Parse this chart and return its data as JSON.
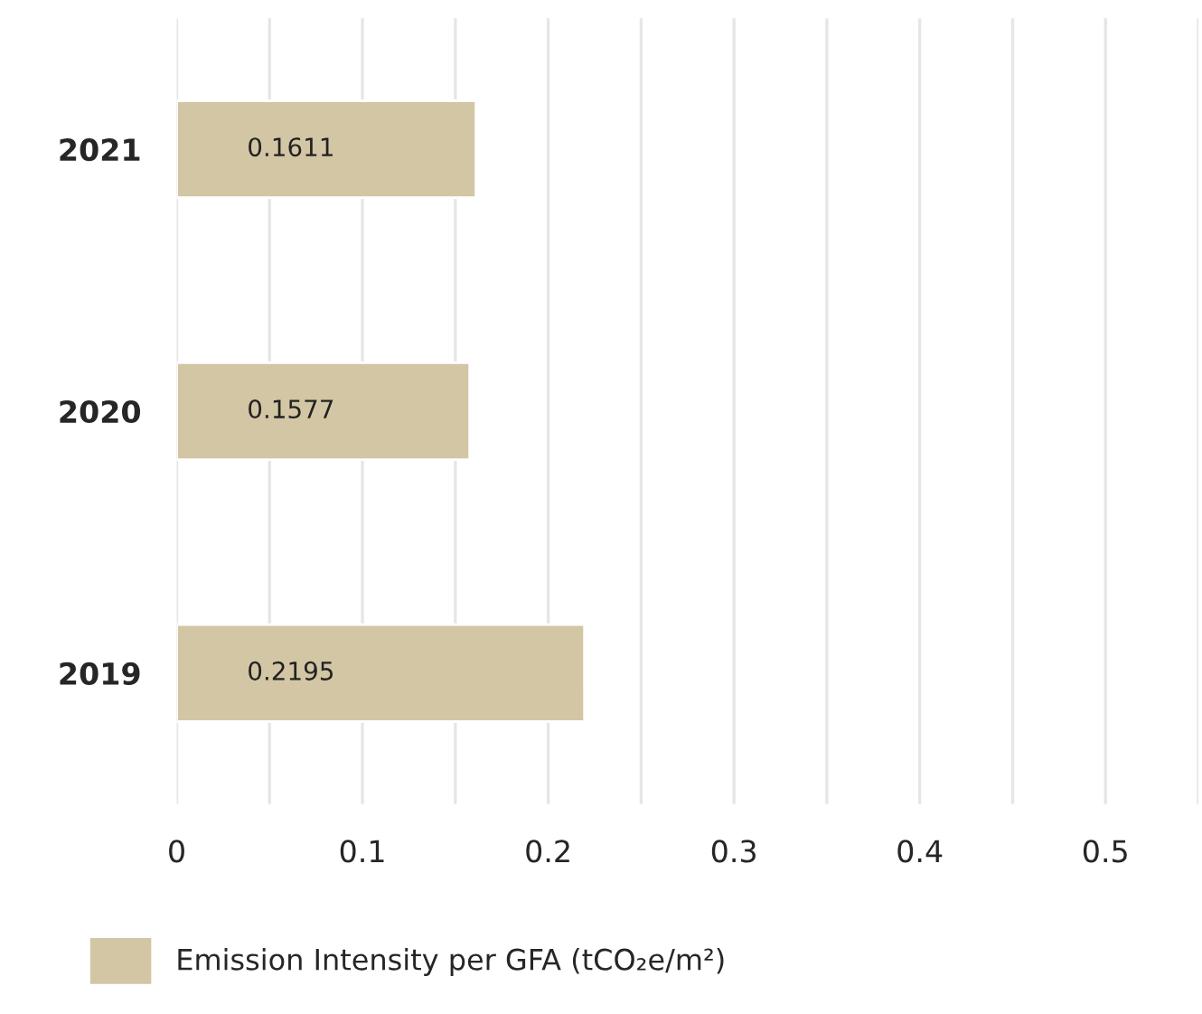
{
  "chart_data": {
    "type": "bar",
    "orientation": "horizontal",
    "categories": [
      "2021",
      "2020",
      "2019"
    ],
    "series": [
      {
        "name": "Emission Intensity per GFA (tCO₂e/m²)",
        "color": "#d3c6a4",
        "values": [
          0.1611,
          0.1577,
          0.2195
        ]
      }
    ],
    "data_labels": true,
    "xlim": [
      0,
      0.55
    ],
    "xticks": [
      0,
      {
        "value": 0.05,
        "label": null
      },
      0.1,
      {
        "value": 0.15,
        "label": null
      },
      0.2,
      {
        "value": 0.25,
        "label": null
      },
      0.3,
      {
        "value": 0.35,
        "label": null
      },
      0.4,
      {
        "value": 0.45,
        "label": null
      },
      0.5,
      {
        "value": 0.55,
        "label": null
      }
    ],
    "grid": "x",
    "legend": "bottom left"
  }
}
